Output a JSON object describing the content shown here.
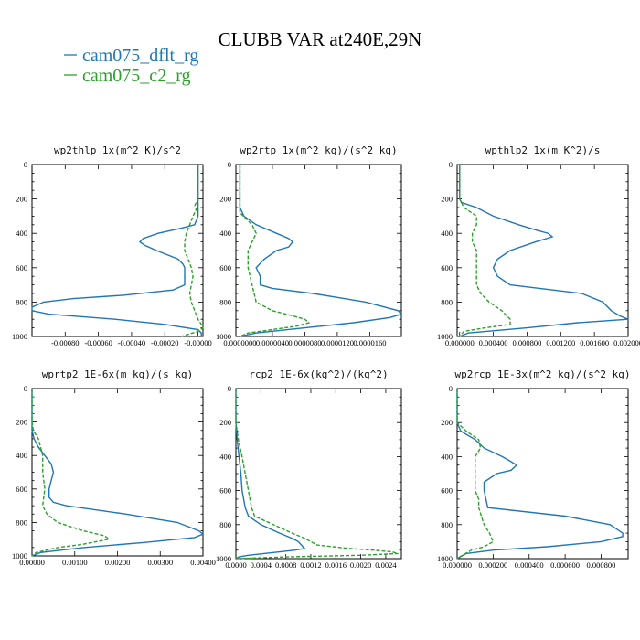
{
  "title": "CLUBB VAR at240E,29N",
  "legend": [
    {
      "label": "cam075_dflt_rg",
      "color": "#1f77b4"
    },
    {
      "label": "cam075_c2_rg",
      "color": "#2ca02c"
    }
  ],
  "chart_data": [
    {
      "type": "line",
      "title": "wp2thlp   1x(m^2 K)/s^2",
      "ylim": [
        1000,
        0
      ],
      "yticks": [
        0,
        200,
        400,
        600,
        800,
        1000
      ],
      "xlim": [
        -0.001,
        3e-05
      ],
      "xticks": [
        -0.0008,
        -0.0006,
        -0.0004,
        -0.0002,
        0.0
      ],
      "xtick_labels": [
        "-0.00080",
        "-0.00060",
        "-0.00040",
        "-0.00020",
        "-0.00000"
      ],
      "series": [
        {
          "name": "cam075_dflt_rg",
          "y": [
            0,
            100,
            200,
            300,
            350,
            370,
            400,
            430,
            450,
            470,
            500,
            550,
            580,
            600,
            650,
            700,
            730,
            760,
            780,
            800,
            830,
            850,
            870,
            900,
            930,
            960,
            980,
            1000
          ],
          "x": [
            0.0,
            0.0,
            0.0,
            0.0,
            -2e-05,
            -0.0001,
            -0.00024,
            -0.00033,
            -0.00035,
            -0.00032,
            -0.00025,
            -0.00012,
            -9e-05,
            -8e-05,
            -8e-05,
            -8e-05,
            -0.00015,
            -0.00045,
            -0.00075,
            -0.00093,
            -0.001,
            -0.001,
            -0.0009,
            -0.0005,
            -0.0002,
            0.0,
            2e-05,
            2e-05
          ]
        },
        {
          "name": "cam075_c2_rg",
          "y": [
            0,
            100,
            200,
            240,
            260,
            300,
            350,
            400,
            450,
            500,
            550,
            600,
            650,
            700,
            750,
            800,
            850,
            900,
            930,
            950,
            970,
            985,
            1000
          ],
          "x": [
            0.0,
            0.0,
            0.0,
            -2e-05,
            -1e-05,
            -3e-05,
            -5e-05,
            -7e-05,
            -8e-05,
            -8e-05,
            -6e-05,
            -4e-05,
            -3e-05,
            -4e-05,
            -5e-05,
            -4e-05,
            -2e-05,
            0.0,
            2e-05,
            3e-05,
            0.0,
            -5e-05,
            -0.0001
          ]
        }
      ]
    },
    {
      "type": "line",
      "title": "wp2rtp   1x(m^2 kg)/(s^2 kg)",
      "ylim": [
        1000,
        0
      ],
      "yticks": [
        0,
        200,
        400,
        600,
        800,
        1000
      ],
      "xlim": [
        -5e-07,
        1.99e-05
      ],
      "xticks": [
        0.0,
        4e-06,
        8e-06,
        1.2e-05,
        1.6e-05
      ],
      "xtick_labels": [
        "0.0000000",
        "0.0000040",
        "0.0000080",
        "0.0000120",
        "0.0000160"
      ],
      "series": [
        {
          "name": "cam075_dflt_rg",
          "y": [
            0,
            100,
            200,
            250,
            300,
            350,
            400,
            430,
            450,
            480,
            500,
            550,
            600,
            650,
            700,
            720,
            750,
            800,
            850,
            870,
            890,
            920,
            950,
            980,
            1000
          ],
          "x": [
            0.0,
            0.0,
            0.0,
            0.0,
            5e-07,
            2e-06,
            4.5e-06,
            6e-06,
            6.5e-06,
            6e-06,
            4.5e-06,
            3e-06,
            2e-06,
            2.5e-06,
            2.5e-06,
            4e-06,
            9e-06,
            1.55e-05,
            1.95e-05,
            1.99e-05,
            1.85e-05,
            1.4e-05,
            8e-06,
            2e-06,
            0.0
          ]
        },
        {
          "name": "cam075_c2_rg",
          "y": [
            0,
            100,
            200,
            280,
            350,
            400,
            450,
            500,
            600,
            700,
            800,
            850,
            880,
            900,
            920,
            940,
            960,
            980,
            1000
          ],
          "x": [
            0.0,
            0.0,
            0.0,
            5e-10,
            1.5e-06,
            2e-06,
            1.5e-06,
            1e-06,
            1e-06,
            1.5e-06,
            2e-06,
            4e-06,
            6.5e-06,
            8e-06,
            8.5e-06,
            7e-06,
            4e-06,
            1e-06,
            0.0
          ]
        }
      ]
    },
    {
      "type": "line",
      "title": "wpthlp2   1x(m K^2)/s",
      "ylim": [
        1000,
        0
      ],
      "yticks": [
        0,
        200,
        400,
        600,
        800,
        1000
      ],
      "xlim": [
        -3e-05,
        0.002
      ],
      "xticks": [
        0.0,
        0.0004,
        0.0008,
        0.0012,
        0.0016,
        0.002
      ],
      "xtick_labels": [
        "0.000000",
        "0.000400",
        "0.000800",
        "0.001200",
        "0.001600",
        "0.002000"
      ],
      "series": [
        {
          "name": "cam075_dflt_rg",
          "y": [
            0,
            100,
            200,
            220,
            250,
            300,
            350,
            380,
            400,
            420,
            450,
            500,
            550,
            600,
            650,
            700,
            750,
            800,
            850,
            880,
            900,
            920,
            950,
            980,
            1000
          ],
          "x": [
            0.0,
            0.0,
            0.0,
            2e-05,
            0.0002,
            0.0004,
            0.0007,
            0.0009,
            0.00105,
            0.0011,
            0.0009,
            0.0006,
            0.00045,
            0.0004,
            0.00045,
            0.0006,
            0.00145,
            0.0017,
            0.0018,
            0.0019,
            0.002,
            0.0014,
            0.0008,
            0.0001,
            0.0
          ]
        },
        {
          "name": "cam075_c2_rg",
          "y": [
            0,
            100,
            200,
            250,
            300,
            350,
            400,
            450,
            500,
            600,
            700,
            750,
            800,
            850,
            900,
            930,
            950,
            970,
            1000
          ],
          "x": [
            0.0,
            0.0,
            0.0,
            5e-05,
            0.0002,
            0.0002,
            0.00015,
            0.00015,
            0.0002,
            0.0002,
            0.0002,
            0.00025,
            0.00035,
            0.0005,
            0.0006,
            0.0006,
            0.0003,
            5e-05,
            0.0
          ]
        }
      ]
    },
    {
      "type": "line",
      "title": "wprtp2   1E-6x(m kg)/(s kg)",
      "ylim": [
        1000,
        0
      ],
      "yticks": [
        0,
        200,
        400,
        600,
        800,
        1000
      ],
      "xlim": [
        0.0,
        0.004
      ],
      "xticks": [
        0.0,
        0.001,
        0.002,
        0.003,
        0.004
      ],
      "xtick_labels": [
        "0.00000",
        "0.00100",
        "0.00200",
        "0.00300",
        "0.00400"
      ],
      "series": [
        {
          "name": "cam075_dflt_rg",
          "y": [
            0,
            100,
            200,
            250,
            300,
            350,
            400,
            450,
            500,
            550,
            600,
            650,
            680,
            700,
            750,
            800,
            850,
            870,
            890,
            920,
            950,
            980,
            1000
          ],
          "x": [
            0.0,
            0.0,
            0.0,
            0.0,
            5e-05,
            0.00015,
            0.0003,
            0.00045,
            0.0005,
            0.00045,
            0.0004,
            0.0004,
            0.0005,
            0.0008,
            0.0022,
            0.0034,
            0.0039,
            0.004,
            0.0038,
            0.0026,
            0.0012,
            0.0002,
            0.0
          ]
        },
        {
          "name": "cam075_c2_rg",
          "y": [
            0,
            100,
            200,
            250,
            300,
            400,
            500,
            600,
            700,
            750,
            800,
            850,
            880,
            900,
            930,
            950,
            980,
            1000
          ],
          "x": [
            0.0,
            0.0,
            0.0,
            3e-05,
            0.00015,
            0.00025,
            0.00025,
            0.0003,
            0.00025,
            0.00035,
            0.0006,
            0.0012,
            0.0017,
            0.0018,
            0.0012,
            0.0006,
            0.0001,
            0.0
          ]
        }
      ]
    },
    {
      "type": "line",
      "title": "rcp2   1E-6x(kg^2)/(kg^2)",
      "ylim": [
        1000,
        0
      ],
      "yticks": [
        0,
        200,
        400,
        600,
        800,
        1000
      ],
      "xlim": [
        0.0,
        0.00265
      ],
      "xticks": [
        0.0,
        0.0004,
        0.0008,
        0.0012,
        0.0016,
        0.002,
        0.0024
      ],
      "xtick_labels": [
        "0.0000",
        "0.0004",
        "0.0008",
        "0.0012",
        "0.0016",
        "0.0020",
        "0.0024"
      ],
      "series": [
        {
          "name": "cam075_dflt_rg",
          "y": [
            0,
            100,
            200,
            300,
            400,
            500,
            600,
            700,
            750,
            800,
            850,
            880,
            900,
            920,
            940,
            950,
            960,
            970,
            980,
            990,
            1000
          ],
          "x": [
            0.0,
            0.0,
            0.0,
            2e-05,
            5e-05,
            8e-05,
            0.0001,
            0.00015,
            0.0002,
            0.0004,
            0.0007,
            0.0009,
            0.001,
            0.00105,
            0.0011,
            0.00095,
            0.0007,
            0.00045,
            0.0002,
            5e-05,
            0.0
          ]
        },
        {
          "name": "cam075_c2_rg",
          "y": [
            0,
            100,
            200,
            300,
            400,
            500,
            600,
            700,
            750,
            800,
            850,
            880,
            900,
            920,
            940,
            950,
            960,
            970,
            980,
            990,
            1000
          ],
          "x": [
            0.0,
            0.0,
            0.0,
            4e-05,
            0.0001,
            0.00015,
            0.0002,
            0.00025,
            0.0003,
            0.0006,
            0.0009,
            0.0011,
            0.0012,
            0.0013,
            0.0018,
            0.0022,
            0.0025,
            0.0026,
            0.002,
            0.0008,
            0.0
          ]
        }
      ]
    },
    {
      "type": "line",
      "title": "wp2rcp   1E-3x(m^2 kg)/(s^2 kg)",
      "ylim": [
        1000,
        0
      ],
      "yticks": [
        0,
        200,
        400,
        600,
        800,
        1000
      ],
      "xlim": [
        0.0,
        0.00095
      ],
      "xticks": [
        0.0,
        0.0002,
        0.0004,
        0.0006,
        0.0008
      ],
      "xtick_labels": [
        "0.000000",
        "0.000200",
        "0.000400",
        "0.000600",
        "0.000800"
      ],
      "series": [
        {
          "name": "cam075_dflt_rg",
          "y": [
            0,
            100,
            200,
            250,
            300,
            350,
            400,
            430,
            450,
            480,
            500,
            550,
            600,
            650,
            700,
            750,
            800,
            850,
            870,
            900,
            930,
            950,
            970,
            1000
          ],
          "x": [
            0.0,
            0.0,
            0.0,
            2e-05,
            0.0001,
            0.00015,
            0.00025,
            0.0003,
            0.00033,
            0.0003,
            0.00022,
            0.00015,
            0.00015,
            0.00016,
            0.00017,
            0.0006,
            0.00085,
            0.00092,
            0.00092,
            0.0008,
            0.0005,
            0.0002,
            5e-05,
            0.0
          ]
        },
        {
          "name": "cam075_c2_rg",
          "y": [
            0,
            100,
            200,
            250,
            300,
            350,
            400,
            500,
            600,
            650,
            700,
            800,
            850,
            900,
            930,
            950,
            980,
            1000
          ],
          "x": [
            0.0,
            0.0,
            0.0,
            5e-05,
            0.00012,
            0.00013,
            0.0001,
            0.0001,
            0.0001,
            0.00012,
            0.00012,
            0.00015,
            0.00018,
            0.0002,
            0.00015,
            8e-05,
            3e-05,
            0.0
          ]
        }
      ]
    }
  ]
}
